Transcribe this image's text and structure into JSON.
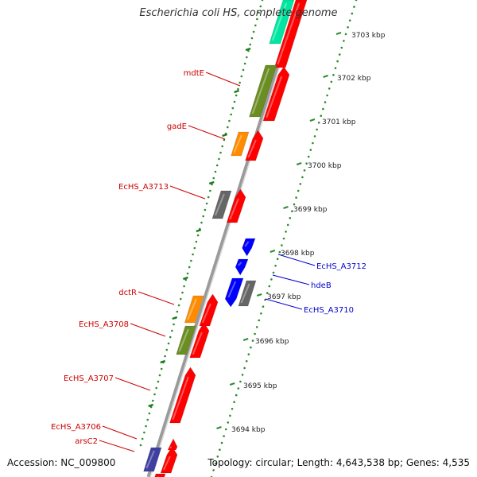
{
  "title": "Escherichia coli HS, complete genome",
  "accession": "Accession: NC_009800",
  "topology": "Topology: circular; Length: 4,643,538 bp; Genes: 4,535",
  "colors": {
    "cds_forward": "#ff0000",
    "cds_reverse": "#0000ff",
    "cog_green": "#6b8e23",
    "cog_orange": "#ff8c00",
    "cog_gray": "#666666",
    "cog_teal": "#00e6a0",
    "cog_navy": "#3f3fa0",
    "backbone": "#999999",
    "gc_dots": "#2e8b2e",
    "forward_label": "#cc0000",
    "reverse_label": "#0000cc"
  },
  "kbp_ticks": [
    "3703 kbp",
    "3702 kbp",
    "3701 kbp",
    "3700 kbp",
    "3699 kbp",
    "3698 kbp",
    "3697 kbp",
    "3696 kbp",
    "3695 kbp",
    "3694 kbp"
  ],
  "forward_genes": [
    "mdtE",
    "gadE",
    "EcHS_A3713",
    "dctR",
    "EcHS_A3708",
    "EcHS_A3707",
    "EcHS_A3706",
    "arsC2"
  ],
  "reverse_genes": [
    "EcHS_A3712",
    "hdeB",
    "EcHS_A3710"
  ]
}
